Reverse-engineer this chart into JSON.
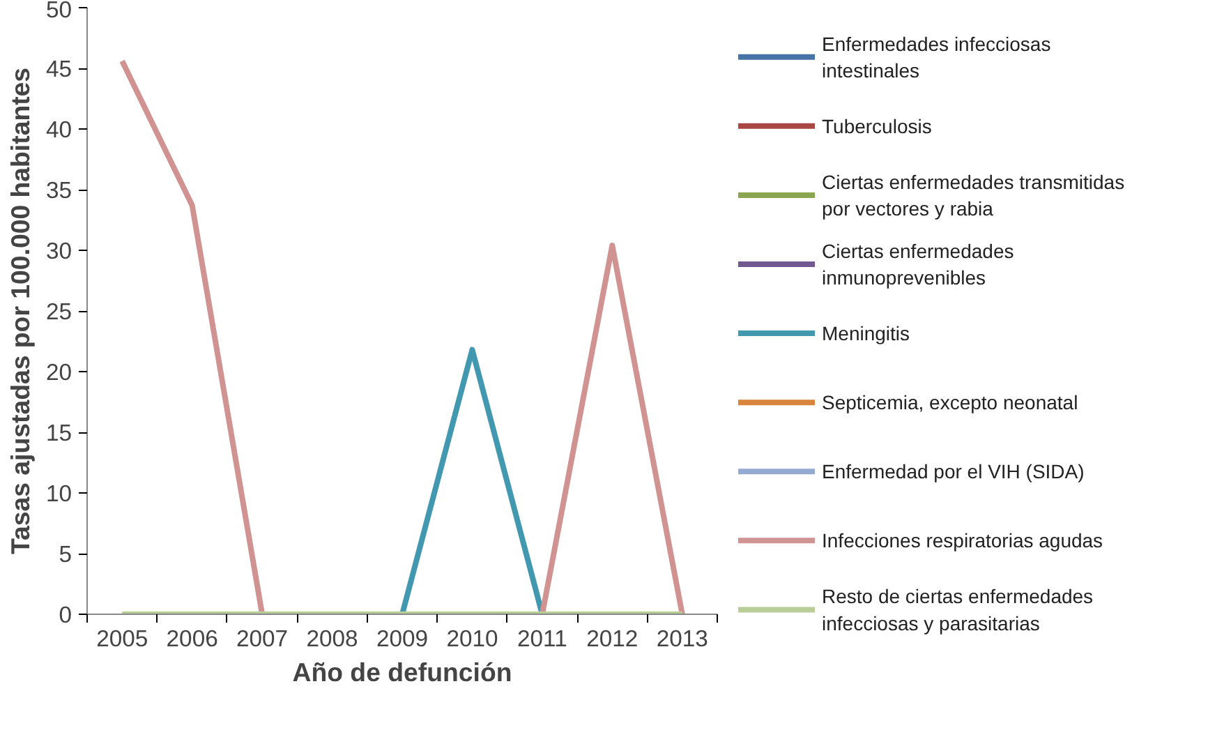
{
  "chart_data": {
    "type": "line",
    "categories": [
      "2005",
      "2006",
      "2007",
      "2008",
      "2009",
      "2010",
      "2011",
      "2012",
      "2013"
    ],
    "xlabel": "Año de defunción",
    "ylabel": "Tasas ajustadas por 100.000 habitantes",
    "ylim": [
      0,
      50
    ],
    "yticks": [
      0,
      5,
      10,
      15,
      20,
      25,
      30,
      35,
      40,
      45,
      50
    ],
    "legend": "right",
    "marker": "none",
    "line_style": "solid",
    "series": [
      {
        "name": "Enfermedades infecciosas intestinales",
        "color": "#4572a7",
        "values": [
          null,
          null,
          null,
          null,
          null,
          null,
          null,
          null,
          null
        ]
      },
      {
        "name": "Tuberculosis",
        "color": "#aa4643",
        "values": [
          null,
          null,
          null,
          null,
          null,
          null,
          null,
          null,
          null
        ]
      },
      {
        "name": "Ciertas enfermedades transmitidas por vectores y rabia",
        "color": "#89a54e",
        "values": [
          null,
          null,
          null,
          null,
          null,
          null,
          null,
          null,
          null
        ]
      },
      {
        "name": "Ciertas enfermedades inmunoprevenibles",
        "color": "#71588f",
        "values": [
          null,
          null,
          null,
          null,
          null,
          null,
          null,
          null,
          null
        ]
      },
      {
        "name": "Meningitis",
        "color": "#4198af",
        "values": [
          null,
          null,
          null,
          null,
          0,
          21.8,
          0,
          null,
          null
        ]
      },
      {
        "name": "Septicemia, excepto neonatal",
        "color": "#db843d",
        "values": [
          null,
          null,
          null,
          null,
          null,
          null,
          null,
          null,
          null
        ]
      },
      {
        "name": "Enfermedad por el VIH (SIDA)",
        "color": "#93a9cf",
        "values": [
          null,
          null,
          null,
          null,
          null,
          null,
          null,
          null,
          null
        ]
      },
      {
        "name": "Infecciones respiratorias agudas",
        "color": "#d19392",
        "values": [
          45.6,
          33.7,
          0,
          null,
          null,
          null,
          0,
          30.4,
          0
        ]
      },
      {
        "name": "Resto de ciertas enfermedades infecciosas y parasitarias",
        "color": "#b9cd96",
        "values": [
          0,
          0,
          0,
          0,
          0,
          0,
          0,
          0,
          0
        ]
      }
    ]
  }
}
